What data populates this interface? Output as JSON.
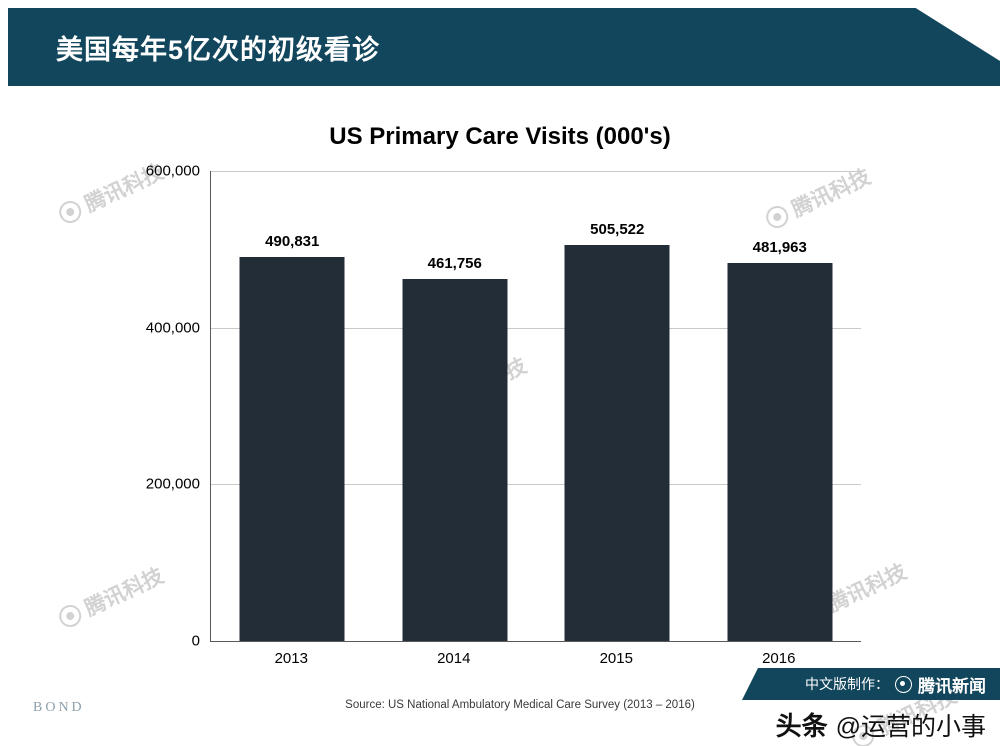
{
  "header": {
    "title": "美国每年5亿次的初级看诊"
  },
  "chart_data": {
    "type": "bar",
    "title": "US Primary Care Visits (000's)",
    "categories": [
      "2013",
      "2014",
      "2015",
      "2016"
    ],
    "values": [
      490831,
      461756,
      505522,
      481963
    ],
    "value_labels": [
      "490,831",
      "461,756",
      "505,522",
      "481,963"
    ],
    "ylim": [
      0,
      600000
    ],
    "yticks": [
      {
        "value": 600000,
        "label": "600,000"
      },
      {
        "value": 400000,
        "label": "400,000"
      },
      {
        "value": 200000,
        "label": "200,000"
      },
      {
        "value": 0,
        "label": "0"
      }
    ],
    "grid": true,
    "legend": false,
    "bar_color": "#232d38"
  },
  "source": "Source: US National Ambulatory Medical Care Survey (2013 – 2016)",
  "footer": {
    "bond": "BOND",
    "ribbon_prefix": "中文版制作：",
    "ribbon_brand": "腾讯新闻",
    "byline_brand": "头条",
    "byline_handle": "@运营的小事"
  },
  "watermark": {
    "text": "腾讯科技"
  },
  "colors": {
    "teal": "#11465c",
    "bar": "#232d38"
  }
}
